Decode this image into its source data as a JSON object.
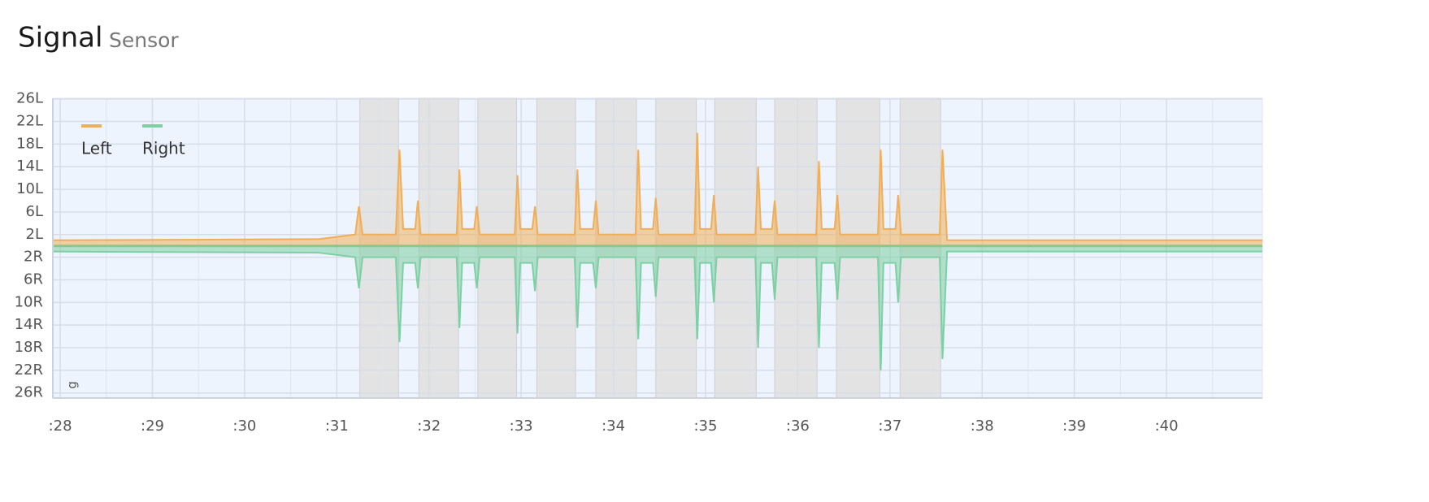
{
  "header": {
    "title": "Signal",
    "subtitle": "Sensor"
  },
  "chart_data": {
    "type": "area",
    "y_label": "g",
    "x": [
      27.92,
      30.8,
      31.2,
      31.24,
      31.28,
      31.64,
      31.68,
      31.72,
      31.85,
      31.88,
      31.91,
      32.3,
      32.33,
      32.36,
      32.49,
      32.52,
      32.55,
      32.93,
      32.96,
      32.99,
      33.12,
      33.15,
      33.18,
      33.58,
      33.61,
      33.64,
      33.78,
      33.81,
      33.84,
      34.24,
      34.27,
      34.3,
      34.43,
      34.46,
      34.49,
      34.88,
      34.91,
      34.94,
      35.06,
      35.09,
      35.12,
      35.54,
      35.57,
      35.6,
      35.72,
      35.75,
      35.78,
      36.2,
      36.23,
      36.26,
      36.4,
      36.43,
      36.46,
      36.87,
      36.9,
      36.93,
      37.06,
      37.09,
      37.12,
      37.54,
      37.57,
      37.62,
      41.04
    ],
    "series": [
      {
        "name": "Left",
        "color": "#f0ae58",
        "values": [
          1,
          1.2,
          2,
          7,
          2,
          2,
          17,
          3,
          3,
          8,
          2,
          2,
          13.5,
          3,
          3,
          7,
          2,
          2,
          12.5,
          3,
          3,
          7,
          2,
          2,
          13.5,
          3,
          3,
          8,
          2,
          2,
          17,
          3,
          3,
          8.5,
          2,
          2,
          20,
          3,
          3,
          9,
          2,
          2,
          14,
          3,
          3,
          8,
          2,
          2,
          15,
          3,
          3,
          9,
          2,
          2,
          17,
          3,
          3,
          9,
          2,
          2,
          17,
          1,
          1
        ]
      },
      {
        "name": "Right",
        "color": "#7dcfa4",
        "values": [
          -1,
          -1.2,
          -2,
          -7.5,
          -2,
          -2,
          -17,
          -3,
          -3,
          -7.5,
          -2,
          -2,
          -14.5,
          -3,
          -3,
          -7.5,
          -2,
          -2,
          -15.5,
          -3,
          -3,
          -8,
          -2,
          -2,
          -14.5,
          -3,
          -3,
          -7.5,
          -2,
          -2,
          -16.5,
          -3,
          -3,
          -9,
          -2,
          -2,
          -16.5,
          -3,
          -3,
          -10,
          -2,
          -2,
          -18,
          -3,
          -3,
          -9.5,
          -2,
          -2,
          -18,
          -3,
          -3,
          -9.5,
          -2,
          -2,
          -22,
          -3,
          -3,
          -10,
          -2,
          -2,
          -20,
          -1,
          -1
        ]
      }
    ],
    "shaded_regions": [
      [
        31.25,
        31.67
      ],
      [
        31.89,
        32.32
      ],
      [
        32.53,
        32.95
      ],
      [
        33.17,
        33.59
      ],
      [
        33.81,
        34.25
      ],
      [
        34.46,
        34.9
      ],
      [
        35.1,
        35.55
      ],
      [
        35.75,
        36.21
      ],
      [
        36.42,
        36.89
      ],
      [
        37.11,
        37.55
      ]
    ],
    "xlim": [
      27.92,
      41.04
    ],
    "ylim": [
      -26.9,
      26.1
    ],
    "xticks": [
      {
        "value": 28,
        "label": ":28"
      },
      {
        "value": 29,
        "label": ":29"
      },
      {
        "value": 30,
        "label": ":30"
      },
      {
        "value": 31,
        "label": ":31"
      },
      {
        "value": 32,
        "label": ":32"
      },
      {
        "value": 33,
        "label": ":33"
      },
      {
        "value": 34,
        "label": ":34"
      },
      {
        "value": 35,
        "label": ":35"
      },
      {
        "value": 36,
        "label": ":36"
      },
      {
        "value": 37,
        "label": ":37"
      },
      {
        "value": 38,
        "label": ":38"
      },
      {
        "value": 39,
        "label": ":39"
      },
      {
        "value": 40,
        "label": ":40"
      }
    ],
    "yticks": [
      {
        "value": 26,
        "label": "26L"
      },
      {
        "value": 22,
        "label": "22L"
      },
      {
        "value": 18,
        "label": "18L"
      },
      {
        "value": 14,
        "label": "14L"
      },
      {
        "value": 10,
        "label": "10L"
      },
      {
        "value": 6,
        "label": "6L"
      },
      {
        "value": 2,
        "label": "2L"
      },
      {
        "value": -2,
        "label": "2R"
      },
      {
        "value": -6,
        "label": "6R"
      },
      {
        "value": -10,
        "label": "10R"
      },
      {
        "value": -14,
        "label": "14R"
      },
      {
        "value": -18,
        "label": "18R"
      },
      {
        "value": -22,
        "label": "22R"
      },
      {
        "value": -26,
        "label": "26R"
      }
    ],
    "grid": true,
    "legend": "upper left"
  }
}
